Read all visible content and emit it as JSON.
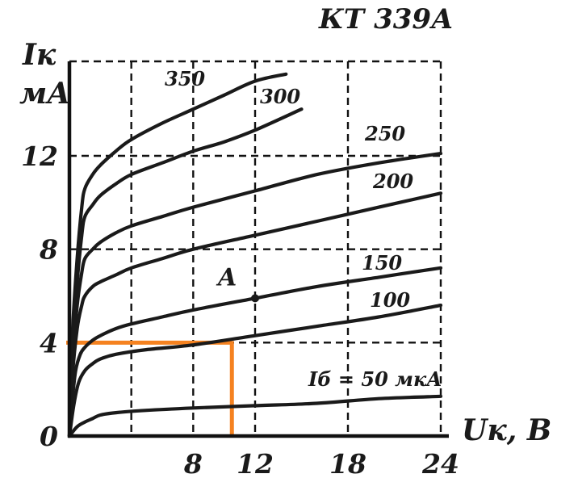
{
  "chart_data": {
    "type": "line",
    "title": "КТ 339А",
    "xlabel": "Uк, В",
    "ylabel": "Iк\nмА",
    "ylabel_lines": [
      "Iк",
      "мА"
    ],
    "x_ticks": [
      "8",
      "12",
      "18",
      "24"
    ],
    "y_ticks": [
      "0",
      "4",
      "8",
      "12"
    ],
    "xlim": [
      0,
      24
    ],
    "ylim": [
      0,
      15.5
    ],
    "grid": true,
    "series": [
      {
        "name": "Iб = 50 мкА",
        "label": "Iб = 50 мкА",
        "x": [
          0,
          0.5,
          1,
          1.5,
          2,
          3,
          5,
          8,
          12,
          16,
          20,
          24
        ],
        "y": [
          0,
          0.4,
          0.6,
          0.75,
          0.9,
          1.0,
          1.1,
          1.2,
          1.3,
          1.4,
          1.6,
          1.7
        ]
      },
      {
        "name": "100",
        "label": "100",
        "x": [
          0,
          0.3,
          0.6,
          1,
          1.5,
          2,
          3,
          5,
          8,
          12,
          16,
          20,
          24
        ],
        "y": [
          0,
          1.4,
          2.3,
          2.8,
          3.1,
          3.3,
          3.5,
          3.7,
          3.9,
          4.3,
          4.7,
          5.1,
          5.6
        ]
      },
      {
        "name": "150",
        "label": "150",
        "x": [
          0,
          0.2,
          0.4,
          0.7,
          1,
          1.5,
          2,
          3,
          4,
          6,
          8,
          12,
          16,
          20,
          24
        ],
        "y": [
          0,
          1.6,
          2.8,
          3.5,
          3.8,
          4.1,
          4.3,
          4.6,
          4.8,
          5.1,
          5.4,
          5.9,
          6.4,
          6.8,
          7.2
        ]
      },
      {
        "name": "200",
        "label": "200",
        "x": [
          0,
          0.2,
          0.5,
          0.8,
          1,
          1.5,
          2,
          3,
          4,
          6,
          8,
          12,
          16,
          20,
          24
        ],
        "y": [
          0,
          2.6,
          4.6,
          5.6,
          6.0,
          6.4,
          6.6,
          6.9,
          7.2,
          7.6,
          8.0,
          8.6,
          9.2,
          9.8,
          10.4
        ]
      },
      {
        "name": "250",
        "label": "250",
        "x": [
          0,
          0.2,
          0.5,
          0.8,
          1,
          1.5,
          2,
          3,
          4,
          6,
          8,
          12,
          16,
          20,
          24
        ],
        "y": [
          0,
          3.2,
          5.6,
          7.0,
          7.6,
          8.0,
          8.3,
          8.7,
          9.0,
          9.4,
          9.8,
          10.5,
          11.2,
          11.7,
          12.1
        ]
      },
      {
        "name": "300",
        "label": "300",
        "x": [
          0,
          0.2,
          0.5,
          0.8,
          1,
          1.5,
          2,
          3,
          4,
          6,
          8,
          10,
          12,
          15
        ],
        "y": [
          0,
          3.8,
          6.6,
          8.6,
          9.4,
          9.9,
          10.3,
          10.8,
          11.2,
          11.7,
          12.2,
          12.6,
          13.1,
          14.0
        ]
      },
      {
        "name": "350",
        "label": "350",
        "x": [
          0,
          0.2,
          0.5,
          0.8,
          1,
          1.5,
          2,
          3,
          4,
          6,
          8,
          10,
          12,
          14
        ],
        "y": [
          0,
          4.4,
          7.6,
          9.8,
          10.6,
          11.2,
          11.6,
          12.2,
          12.7,
          13.4,
          14.0,
          14.6,
          15.2,
          15.5
        ]
      }
    ],
    "annotations": [
      {
        "text": "A",
        "x": 12,
        "y": 5.9
      }
    ],
    "guide_lines": [
      {
        "color": "#f58220",
        "x": 10.5,
        "y": 4
      }
    ],
    "colors": {
      "curves": "#1a1a1a",
      "guide": "#f58220"
    }
  }
}
